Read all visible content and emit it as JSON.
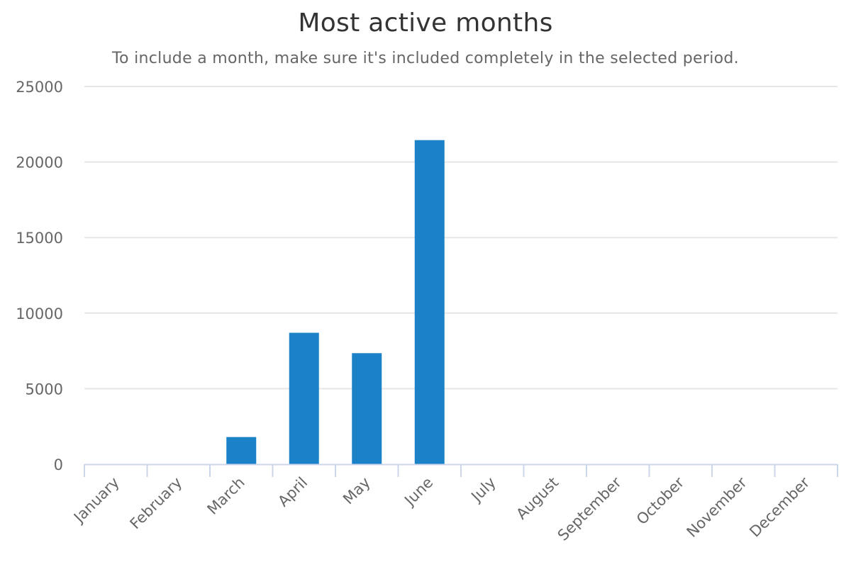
{
  "chart_data": {
    "type": "bar",
    "title": "Most active months",
    "subtitle": "To include a month, make sure it's included completely in the selected period.",
    "xlabel": "",
    "ylabel": "",
    "categories": [
      "January",
      "February",
      "March",
      "April",
      "May",
      "June",
      "July",
      "August",
      "September",
      "October",
      "November",
      "December"
    ],
    "values": [
      0,
      0,
      1800,
      8700,
      7350,
      21450,
      0,
      0,
      0,
      0,
      0,
      0
    ],
    "ylim": [
      0,
      25000
    ],
    "yticks": [
      0,
      5000,
      10000,
      15000,
      20000,
      25000
    ],
    "grid": true,
    "legend": "none",
    "colors": {
      "bar": "#1c82c7",
      "grid": "#e6e6e6",
      "axis": "#ccd6eb",
      "text": "#666666"
    }
  }
}
